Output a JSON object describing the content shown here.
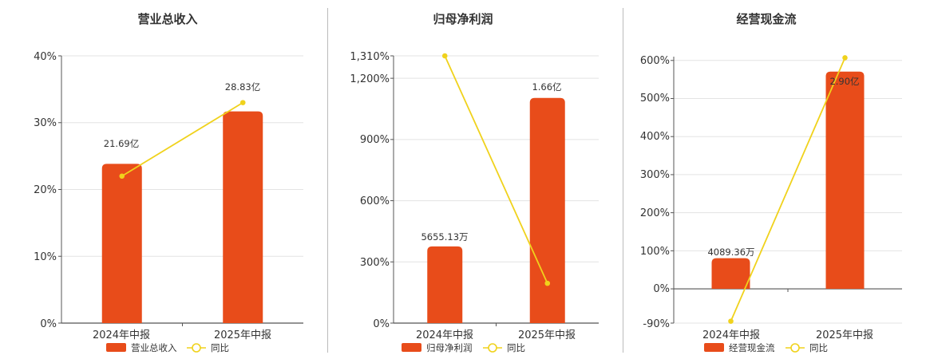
{
  "colors": {
    "bar": "#e84c1a",
    "line": "#f0d21c",
    "grid": "#e3e3e3",
    "axis": "#555555"
  },
  "chart_data": [
    {
      "type": "bar",
      "title": "营业总收入",
      "categories": [
        "2024年中报",
        "2025年中报"
      ],
      "series": [
        {
          "name": "营业总收入",
          "type": "bar",
          "values": [
            21.69,
            28.83
          ],
          "labels": [
            "21.69亿",
            "28.83亿"
          ]
        },
        {
          "name": "同比",
          "type": "line",
          "values": [
            22.0,
            33.0
          ]
        }
      ],
      "yticks": [
        "0%",
        "10%",
        "20%",
        "30%",
        "40%"
      ],
      "ylim": [
        0,
        40
      ]
    },
    {
      "type": "bar",
      "title": "归母净利润",
      "categories": [
        "2024年中报",
        "2025年中报"
      ],
      "series": [
        {
          "name": "归母净利润",
          "type": "bar",
          "values": [
            0.5655,
            1.66
          ],
          "labels": [
            "5655.13万",
            "1.66亿"
          ]
        },
        {
          "name": "同比",
          "type": "line",
          "values": [
            1310,
            195
          ]
        }
      ],
      "yticks": [
        "0%",
        "300%",
        "600%",
        "900%",
        "1,200%",
        "1,310%"
      ],
      "ylim": [
        0,
        1310
      ]
    },
    {
      "type": "bar",
      "title": "经营现金流",
      "categories": [
        "2024年中报",
        "2025年中报"
      ],
      "series": [
        {
          "name": "经营现金流",
          "type": "bar",
          "values": [
            0.4089,
            2.9
          ],
          "labels": [
            "4089.36万",
            "2.90亿"
          ]
        },
        {
          "name": "同比",
          "type": "line",
          "values": [
            -85,
            607
          ]
        }
      ],
      "yticks": [
        "-90%",
        "0%",
        "100%",
        "200%",
        "300%",
        "400%",
        "500%",
        "600%"
      ],
      "ylim": [
        -90,
        610
      ]
    }
  ]
}
